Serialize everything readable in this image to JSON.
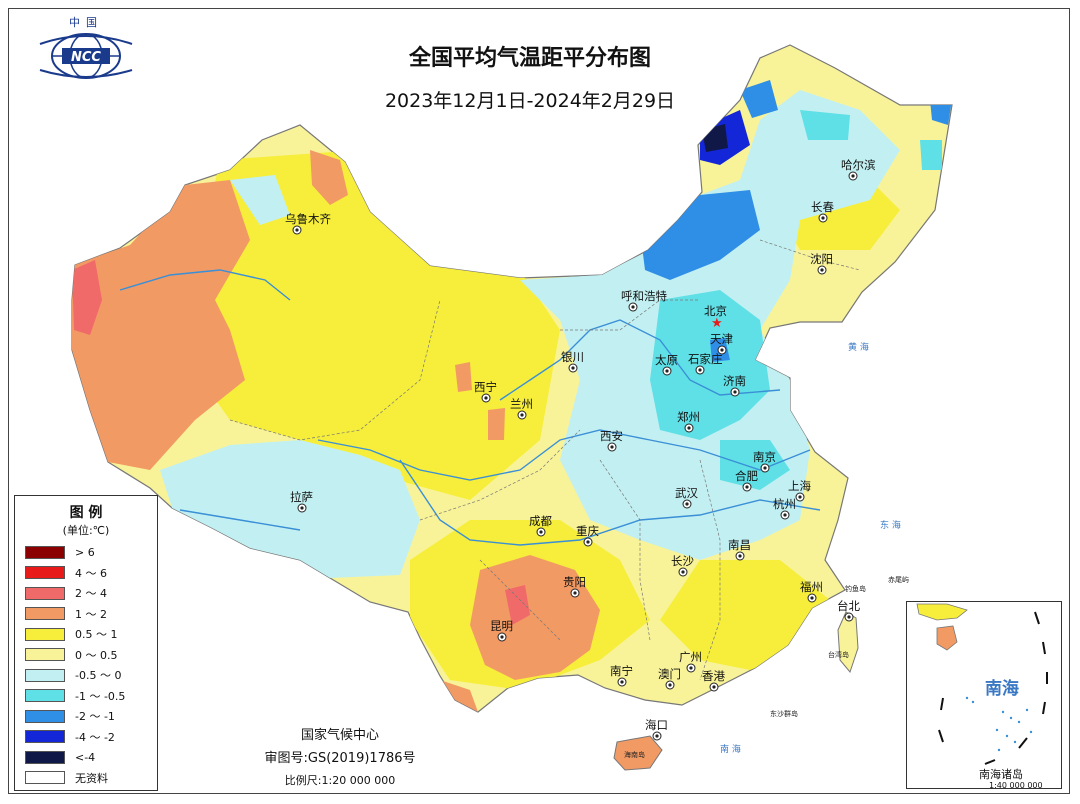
{
  "header": {
    "logo_top": "中国",
    "logo_text": "NCC",
    "title": "全国平均气温距平分布图",
    "subtitle": "2023年12月1日-2024年2月29日"
  },
  "legend": {
    "title": "图 例",
    "unit": "(单位:℃)",
    "items": [
      {
        "label": "> 6",
        "color": "#8b0000"
      },
      {
        "label": "4 ～ 6",
        "color": "#e81a1a"
      },
      {
        "label": "2 ～ 4",
        "color": "#f06a6a"
      },
      {
        "label": "1 ～ 2",
        "color": "#f29a64"
      },
      {
        "label": "0.5 ～ 1",
        "color": "#f6ee3a"
      },
      {
        "label": "0 ～ 0.5",
        "color": "#f8f398"
      },
      {
        "label": "-0.5 ～ 0",
        "color": "#c2f0f2"
      },
      {
        "label": "-1 ～ -0.5",
        "color": "#5fe0e6"
      },
      {
        "label": "-2 ～ -1",
        "color": "#2f8ee6"
      },
      {
        "label": "-4 ～ -2",
        "color": "#1326d8"
      },
      {
        "label": "<-4",
        "color": "#101848"
      },
      {
        "label": "无资料",
        "color": "#ffffff"
      }
    ]
  },
  "credits": {
    "org": "国家气候中心",
    "approval": "审图号:GS(2019)1786号",
    "scale": "比例尺:1:20 000 000"
  },
  "cities": [
    "乌鲁木齐",
    "哈尔滨",
    "长春",
    "沈阳",
    "呼和浩特",
    "北京",
    "天津",
    "石家庄",
    "太原",
    "银川",
    "西宁",
    "兰州",
    "济南",
    "郑州",
    "西安",
    "南京",
    "合肥",
    "上海",
    "拉萨",
    "武汉",
    "杭州",
    "成都",
    "重庆",
    "南昌",
    "长沙",
    "贵阳",
    "福州",
    "台北",
    "昆明",
    "广州",
    "南宁",
    "澳门",
    "香港",
    "海口"
  ],
  "seas": [
    "东 海",
    "黄 海",
    "南 海"
  ],
  "map_notes": [
    "钓鱼岛",
    "赤尾屿",
    "台湾岛",
    "东沙群岛",
    "海南岛"
  ],
  "inset": {
    "sea_label": "南海",
    "caption": "南海诸岛",
    "scale": "1:40 000 000"
  }
}
